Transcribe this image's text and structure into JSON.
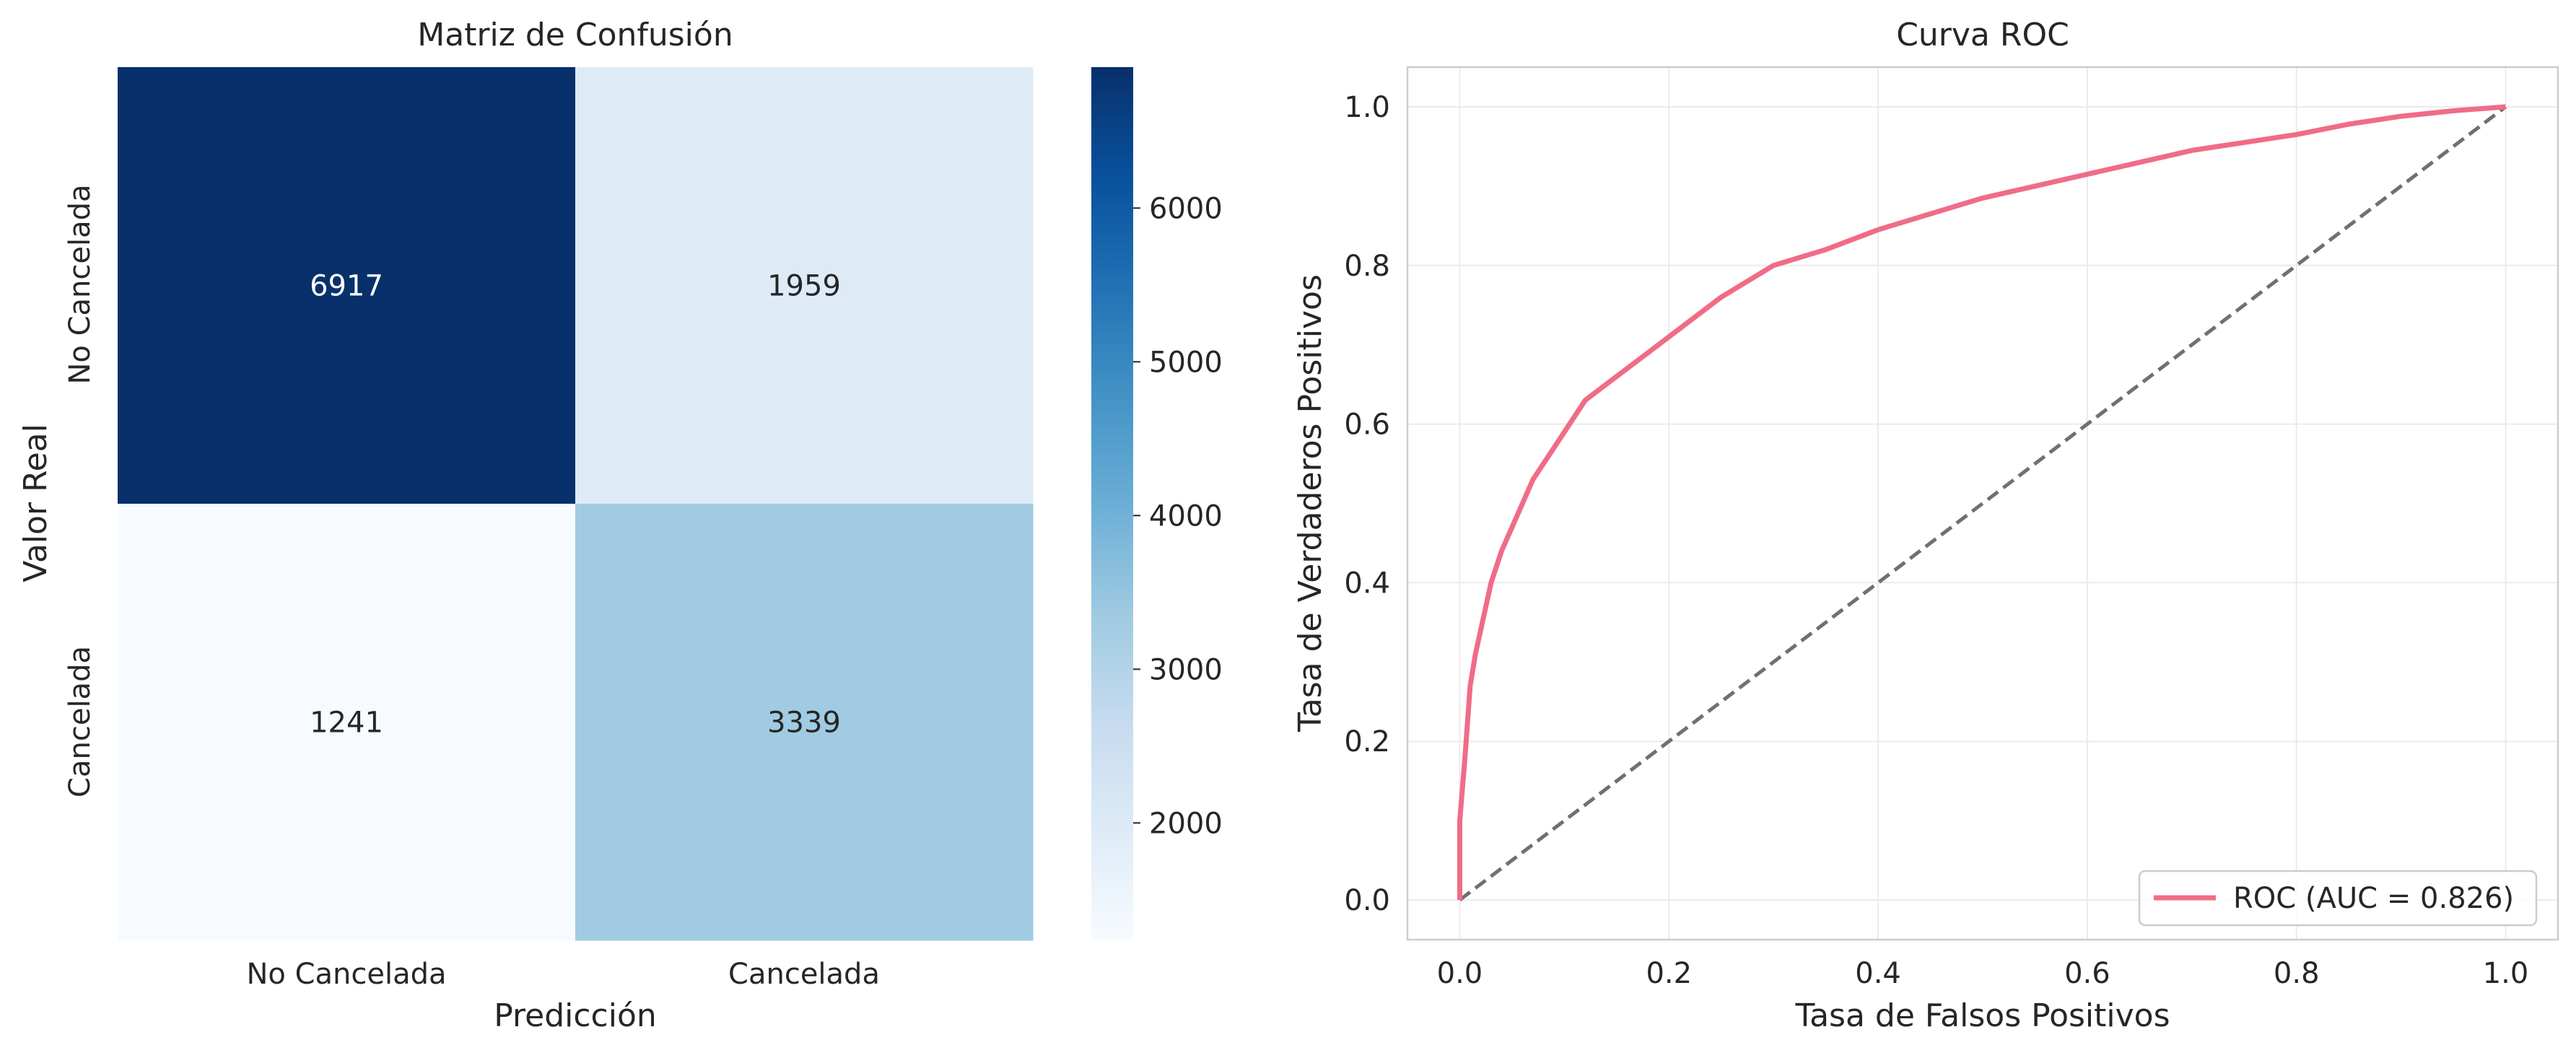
{
  "chart_data": [
    {
      "type": "heatmap",
      "title": "Matriz de Confusión",
      "xlabel": "Predicción",
      "ylabel": "Valor Real",
      "x_categories": [
        "No Cancelada",
        "Cancelada"
      ],
      "y_categories": [
        "No Cancelada",
        "Cancelada"
      ],
      "values": [
        [
          6917,
          1959
        ],
        [
          1241,
          3339
        ]
      ],
      "colormap": "Blues",
      "colorbar": {
        "min": 1241,
        "max": 6917,
        "ticks": [
          2000,
          3000,
          4000,
          5000,
          6000
        ]
      }
    },
    {
      "type": "line",
      "title": "Curva ROC",
      "xlabel": "Tasa de Falsos Positivos",
      "ylabel": "Tasa de Verdaderos Positivos",
      "xlim": [
        -0.05,
        1.05
      ],
      "ylim": [
        -0.05,
        1.05
      ],
      "xticks": [
        0.0,
        0.2,
        0.4,
        0.6,
        0.8,
        1.0
      ],
      "yticks": [
        0.0,
        0.2,
        0.4,
        0.6,
        0.8,
        1.0
      ],
      "grid": true,
      "legend": "lower-right",
      "series": [
        {
          "name": "ROC (AUC = 0.826)",
          "color": "#f06c87",
          "x": [
            0.0,
            0.0,
            0.005,
            0.01,
            0.015,
            0.02,
            0.03,
            0.04,
            0.05,
            0.06,
            0.07,
            0.08,
            0.1,
            0.12,
            0.15,
            0.18,
            0.2,
            0.25,
            0.3,
            0.35,
            0.4,
            0.45,
            0.5,
            0.55,
            0.6,
            0.65,
            0.7,
            0.75,
            0.8,
            0.85,
            0.9,
            0.95,
            1.0
          ],
          "y": [
            0.0,
            0.1,
            0.18,
            0.27,
            0.31,
            0.34,
            0.4,
            0.44,
            0.47,
            0.5,
            0.53,
            0.55,
            0.59,
            0.63,
            0.66,
            0.69,
            0.71,
            0.76,
            0.8,
            0.82,
            0.845,
            0.865,
            0.885,
            0.9,
            0.915,
            0.93,
            0.945,
            0.955,
            0.965,
            0.978,
            0.988,
            0.995,
            1.0
          ]
        },
        {
          "name": "",
          "style": "dashed",
          "color": "#707070",
          "x": [
            0.0,
            1.0
          ],
          "y": [
            0.0,
            1.0
          ]
        }
      ]
    }
  ]
}
